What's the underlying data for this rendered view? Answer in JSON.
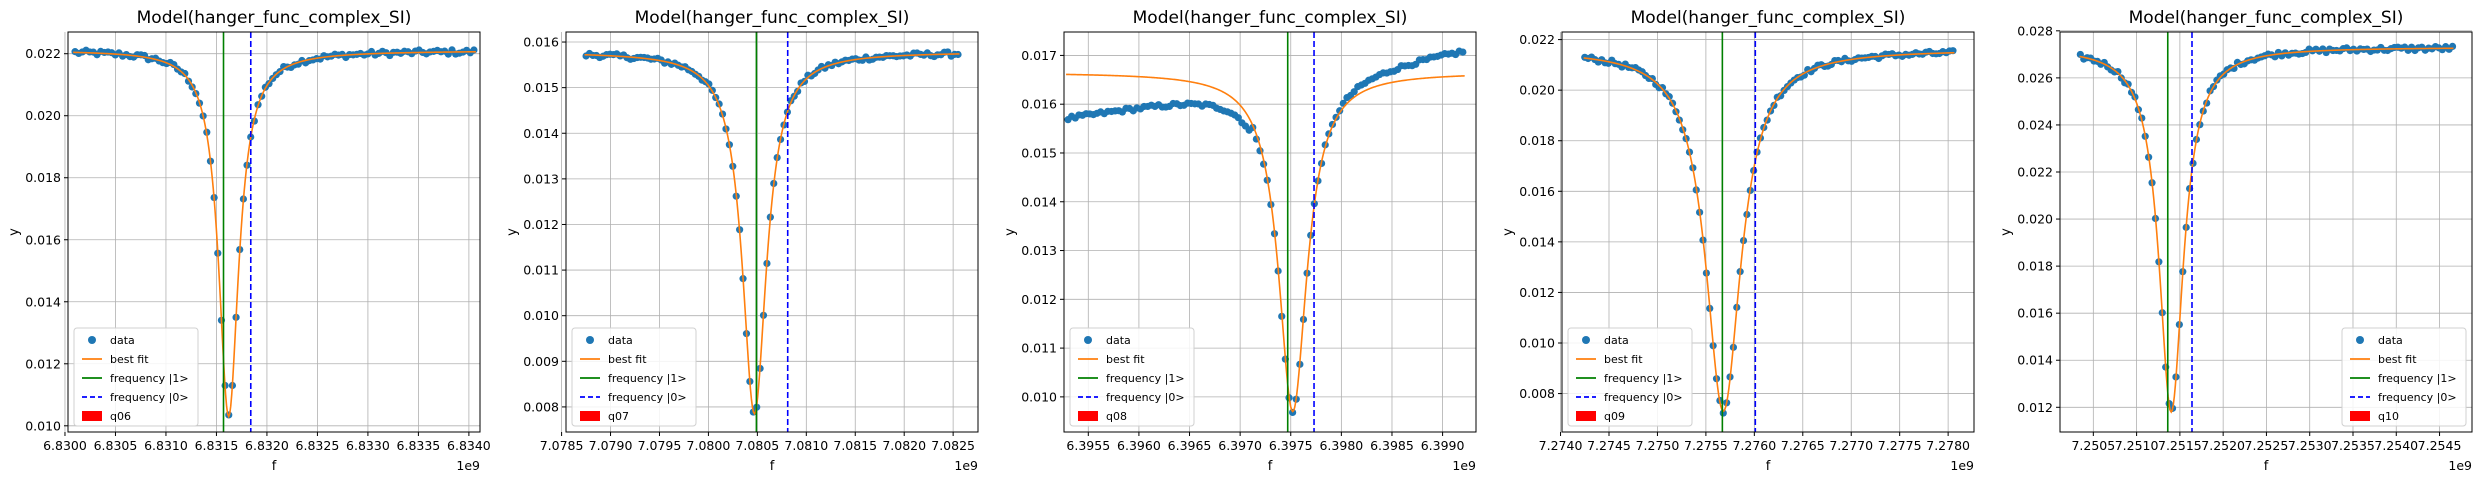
{
  "chart_data": [
    {
      "type": "scatter",
      "title": "Model(hanger_func_complex_SI)",
      "xlabel": "f",
      "ylabel": "y",
      "x_offset_label": "1e9",
      "xlim": [
        6.83003,
        6.83411
      ],
      "ylim": [
        0.0098,
        0.0227
      ],
      "x_ticks": [
        6.83,
        6.8305,
        6.831,
        6.8315,
        6.832,
        6.8325,
        6.833,
        6.8335,
        6.834
      ],
      "x_tick_labels": [
        "6.8300",
        "6.8305",
        "6.8310",
        "6.8315",
        "6.8320",
        "6.8325",
        "6.8330",
        "6.8335",
        "6.8340"
      ],
      "y_ticks": [
        0.01,
        0.012,
        0.014,
        0.016,
        0.018,
        0.02,
        0.022
      ],
      "y_tick_labels": [
        "0.010",
        "0.012",
        "0.014",
        "0.016",
        "0.018",
        "0.020",
        "0.022"
      ],
      "freq1": 6.83157,
      "freq0": 6.83184,
      "fit": {
        "f0": 6.83162,
        "width": 0.00012,
        "base": 0.0221,
        "min": 0.0103,
        "asym": -0.0002
      },
      "data_points": {
        "x_start": 6.8301,
        "x_end": 6.83405,
        "count": 110,
        "offset": 0.0,
        "noise": 8e-05
      },
      "legend": {
        "position": "lower-left",
        "entries": [
          "data",
          "best fit",
          "frequency |1>",
          "frequency |0>",
          "q06"
        ]
      },
      "grid": true
    },
    {
      "type": "scatter",
      "title": "Model(hanger_func_complex_SI)",
      "xlabel": "f",
      "ylabel": "y",
      "x_offset_label": "1e9",
      "xlim": [
        7.078545,
        7.082754
      ],
      "ylim": [
        0.00745,
        0.01622
      ],
      "x_ticks": [
        7.0785,
        7.079,
        7.0795,
        7.08,
        7.0805,
        7.081,
        7.0815,
        7.082,
        7.0825
      ],
      "x_tick_labels": [
        "7.0785",
        "7.0790",
        "7.0795",
        "7.0800",
        "7.0805",
        "7.0810",
        "7.0815",
        "7.0820",
        "7.0825"
      ],
      "y_ticks": [
        0.008,
        0.009,
        0.01,
        0.011,
        0.012,
        0.013,
        0.014,
        0.015,
        0.016
      ],
      "y_tick_labels": [
        "0.008",
        "0.009",
        "0.010",
        "0.011",
        "0.012",
        "0.013",
        "0.014",
        "0.015",
        "0.016"
      ],
      "freq1": 7.08049,
      "freq0": 7.08081,
      "fit": {
        "f0": 7.08047,
        "width": 0.00015,
        "base": 0.01578,
        "min": 0.00785,
        "asym": 0.0
      },
      "data_points": {
        "x_start": 7.07875,
        "x_end": 7.08255,
        "count": 110,
        "offset": 0.0,
        "noise": 5e-05
      },
      "legend": {
        "position": "lower-left",
        "entries": [
          "data",
          "best fit",
          "frequency |1>",
          "frequency |0>",
          "q07"
        ]
      },
      "grid": true
    },
    {
      "type": "scatter",
      "title": "Model(hanger_func_complex_SI)",
      "xlabel": "f",
      "ylabel": "y",
      "x_offset_label": "1e9",
      "xlim": [
        6.39526,
        6.39933
      ],
      "ylim": [
        0.00928,
        0.01748
      ],
      "x_ticks": [
        6.3955,
        6.396,
        6.3965,
        6.397,
        6.3975,
        6.398,
        6.3985,
        6.399
      ],
      "x_tick_labels": [
        "6.3955",
        "6.3960",
        "6.3965",
        "6.3970",
        "6.3975",
        "6.3980",
        "6.3985",
        "6.3990"
      ],
      "y_ticks": [
        0.01,
        0.011,
        0.012,
        0.013,
        0.014,
        0.015,
        0.016,
        0.017
      ],
      "y_tick_labels": [
        "0.010",
        "0.011",
        "0.012",
        "0.013",
        "0.014",
        "0.015",
        "0.016",
        "0.017"
      ],
      "freq1": 6.39747,
      "freq0": 6.39773,
      "fit": {
        "f0": 6.39752,
        "width": 0.00017,
        "base": 0.01665,
        "min": 0.0097,
        "asym": 0.0
      },
      "data_points": {
        "x_start": 6.3953,
        "x_end": 6.3992,
        "count": 110,
        "offset": 0.0,
        "noise": 4e-05,
        "tilt": true
      },
      "legend": {
        "position": "lower-left",
        "entries": [
          "data",
          "best fit",
          "frequency |1>",
          "frequency |0>",
          "q08"
        ]
      },
      "grid": true
    },
    {
      "type": "scatter",
      "title": "Model(hanger_func_complex_SI)",
      "xlabel": "f",
      "ylabel": "y",
      "x_offset_label": "1e9",
      "xlim": [
        7.274015,
        7.278267
      ],
      "ylim": [
        0.00648,
        0.0223
      ],
      "x_ticks": [
        7.274,
        7.2745,
        7.275,
        7.2755,
        7.276,
        7.2765,
        7.277,
        7.2775,
        7.278
      ],
      "x_tick_labels": [
        "7.2740",
        "7.2745",
        "7.2750",
        "7.2755",
        "7.2760",
        "7.2765",
        "7.2770",
        "7.2775",
        "7.2780"
      ],
      "y_ticks": [
        0.008,
        0.01,
        0.012,
        0.014,
        0.016,
        0.018,
        0.02,
        0.022
      ],
      "y_tick_labels": [
        "0.008",
        "0.010",
        "0.012",
        "0.014",
        "0.016",
        "0.018",
        "0.020",
        "0.022"
      ],
      "freq1": 7.27567,
      "freq0": 7.27601,
      "fit": {
        "f0": 7.27568,
        "width": 0.00022,
        "base": 0.0216,
        "min": 0.0073,
        "asym": 0.0
      },
      "data_points": {
        "x_start": 7.27425,
        "x_end": 7.27805,
        "count": 110,
        "offset": 0.0,
        "noise": 9e-05
      },
      "legend": {
        "position": "lower-left",
        "entries": [
          "data",
          "best fit",
          "frequency |1>",
          "frequency |0>",
          "q09"
        ]
      },
      "grid": true
    },
    {
      "type": "scatter",
      "title": "Model(hanger_func_complex_SI)",
      "xlabel": "f",
      "ylabel": "y",
      "x_offset_label": "1e9",
      "xlim": [
        7.250115,
        7.254875
      ],
      "ylim": [
        0.01095,
        0.02795
      ],
      "x_ticks": [
        7.2505,
        7.251,
        7.2515,
        7.252,
        7.2525,
        7.253,
        7.2535,
        7.254,
        7.2545
      ],
      "x_tick_labels": [
        "7.2505",
        "7.2510",
        "7.2515",
        "7.2520",
        "7.2525",
        "7.2530",
        "7.2535",
        "7.2540",
        "7.2545"
      ],
      "y_ticks": [
        0.012,
        0.014,
        0.016,
        0.018,
        0.02,
        0.022,
        0.024,
        0.026,
        0.028
      ],
      "y_tick_labels": [
        "0.012",
        "0.014",
        "0.016",
        "0.018",
        "0.020",
        "0.022",
        "0.024",
        "0.026",
        "0.028"
      ],
      "freq1": 7.25136,
      "freq0": 7.25164,
      "fit": {
        "f0": 7.2514,
        "width": 0.00017,
        "base": 0.0273,
        "min": 0.0118,
        "asym": 0.0
      },
      "data_points": {
        "x_start": 7.25035,
        "x_end": 7.25465,
        "count": 110,
        "offset": 0.0,
        "noise": 0.0001
      },
      "legend": {
        "position": "lower-right",
        "entries": [
          "data",
          "best fit",
          "frequency |1>",
          "frequency |0>",
          "q10"
        ]
      },
      "grid": true
    }
  ],
  "colors": {
    "data": "#1f77b4",
    "fit": "#ff7f0e",
    "freq1": "#008000",
    "freq0": "#0000ff",
    "qubit": "#ff0000",
    "grid": "#b0b0b0"
  }
}
